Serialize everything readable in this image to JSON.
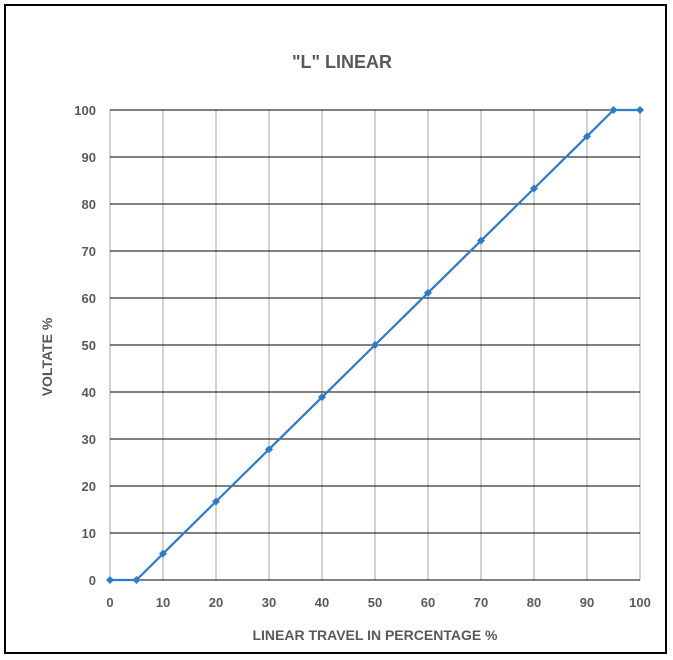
{
  "chart_data": {
    "type": "line",
    "title": "\"L\" LINEAR",
    "xlabel": "LINEAR TRAVEL IN PERCENTAGE %",
    "ylabel": "VOLTATE %",
    "xlim": [
      0,
      100
    ],
    "ylim": [
      0,
      100
    ],
    "xticks": [
      0,
      10,
      20,
      30,
      40,
      50,
      60,
      70,
      80,
      90,
      100
    ],
    "yticks": [
      0,
      10,
      20,
      30,
      40,
      50,
      60,
      70,
      80,
      90,
      100
    ],
    "grid": true,
    "legend": "none",
    "series": [
      {
        "color": "#2E7CC9",
        "x": [
          0,
          5,
          10,
          20,
          30,
          40,
          50,
          60,
          70,
          80,
          90,
          95,
          100
        ],
        "y": [
          0,
          0,
          5.6,
          16.7,
          27.8,
          38.9,
          50,
          61.1,
          72.2,
          83.3,
          94.4,
          100,
          100
        ]
      }
    ]
  }
}
